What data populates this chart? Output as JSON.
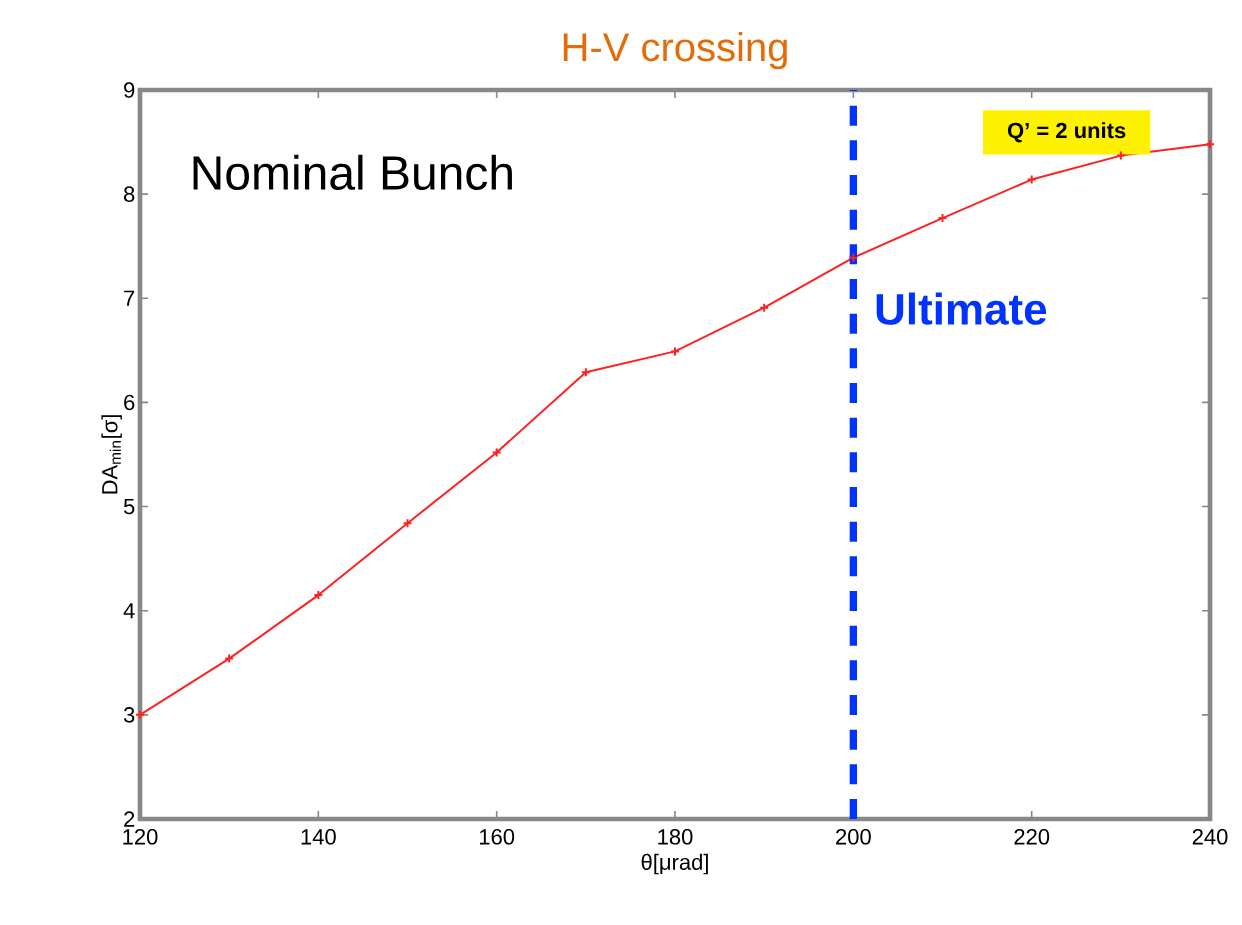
{
  "chart_data": {
    "type": "line",
    "title": "H-V crossing",
    "xlabel": "θ[μrad]",
    "ylabel": "DA$_{min}$[σ]",
    "x": [
      120,
      130,
      140,
      150,
      160,
      170,
      180,
      190,
      200,
      210,
      220,
      230,
      240
    ],
    "series": [
      {
        "color": "#ff2020",
        "values": [
          3.0,
          3.54,
          4.15,
          4.84,
          5.52,
          6.29,
          6.49,
          6.91,
          7.39,
          7.77,
          8.14,
          8.37,
          8.48
        ]
      }
    ],
    "xlim": [
      120,
      240
    ],
    "ylim": [
      2,
      9
    ],
    "xticks": [
      120,
      140,
      160,
      180,
      200,
      220,
      240
    ],
    "yticks": [
      2,
      3,
      4,
      5,
      6,
      7,
      8,
      9
    ],
    "marker": "cross",
    "line_style": "solid",
    "grid": false,
    "ref_lines": [
      {
        "axis": "x",
        "value": 200,
        "label": "Ultimate",
        "color": "#0033ff",
        "line_style": "dashed"
      }
    ],
    "annotations": [
      "Nominal Bunch",
      "Q’ = 2 units"
    ]
  }
}
